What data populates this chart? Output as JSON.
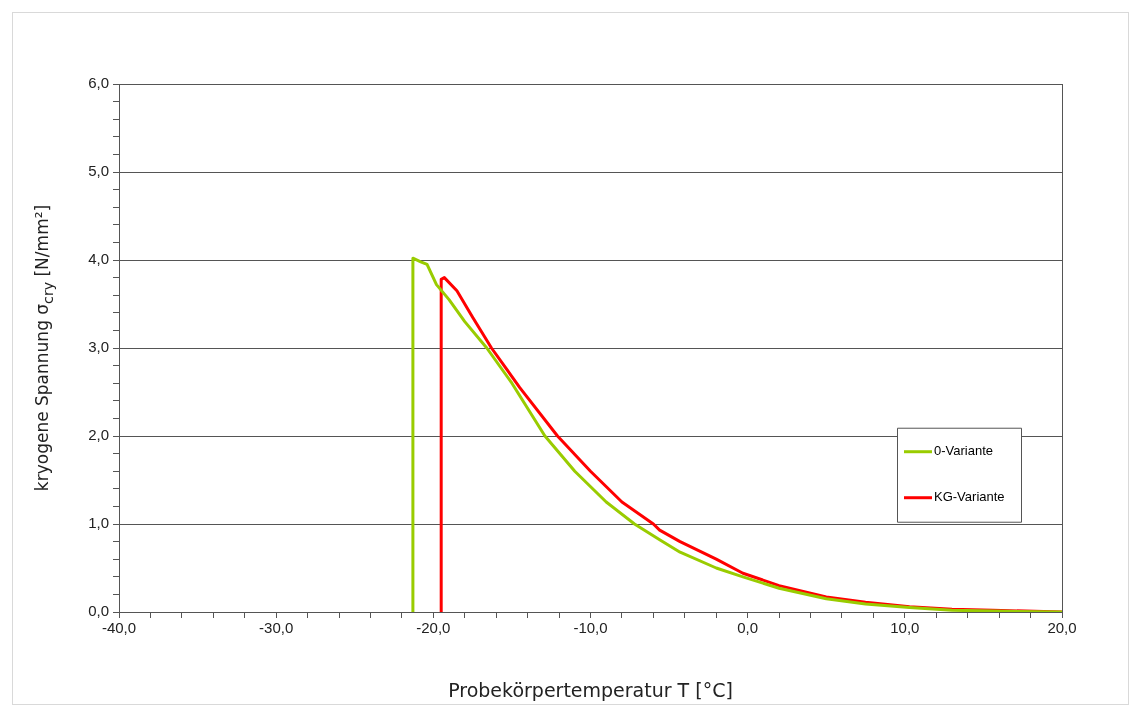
{
  "chart_data": {
    "type": "line",
    "xlabel": "Probekörpertemperatur T [°C]",
    "ylabel": "kryogene Spannung σ$_{cry}$ [N/mm²]",
    "xlim": [
      -40,
      20
    ],
    "xticks": [
      {
        "value": -40,
        "label": "-40,0"
      },
      {
        "value": -38,
        "label": null
      },
      {
        "value": -36,
        "label": null
      },
      {
        "value": -34,
        "label": null
      },
      {
        "value": -32,
        "label": null
      },
      {
        "value": -30,
        "label": "-30,0"
      },
      {
        "value": -28,
        "label": null
      },
      {
        "value": -26,
        "label": null
      },
      {
        "value": -24,
        "label": null
      },
      {
        "value": -22,
        "label": null
      },
      {
        "value": -20,
        "label": "-20,0"
      },
      {
        "value": -18,
        "label": null
      },
      {
        "value": -16,
        "label": null
      },
      {
        "value": -14,
        "label": null
      },
      {
        "value": -12,
        "label": null
      },
      {
        "value": -10,
        "label": "-10,0"
      },
      {
        "value": -8,
        "label": null
      },
      {
        "value": -6,
        "label": null
      },
      {
        "value": -4,
        "label": null
      },
      {
        "value": -2,
        "label": null
      },
      {
        "value": 0,
        "label": "0,0"
      },
      {
        "value": 2,
        "label": null
      },
      {
        "value": 4,
        "label": null
      },
      {
        "value": 6,
        "label": null
      },
      {
        "value": 8,
        "label": null
      },
      {
        "value": 10,
        "label": "10,0"
      },
      {
        "value": 12,
        "label": null
      },
      {
        "value": 14,
        "label": null
      },
      {
        "value": 16,
        "label": null
      },
      {
        "value": 18,
        "label": null
      },
      {
        "value": 20,
        "label": "20,0"
      }
    ],
    "ylim": [
      0,
      6
    ],
    "yticks": [
      {
        "value": 0,
        "label": "0,0"
      },
      {
        "value": 0.2,
        "label": null
      },
      {
        "value": 0.4,
        "label": null
      },
      {
        "value": 0.6,
        "label": null
      },
      {
        "value": 0.8,
        "label": null
      },
      {
        "value": 1,
        "label": "1,0"
      },
      {
        "value": 1.2,
        "label": null
      },
      {
        "value": 1.4,
        "label": null
      },
      {
        "value": 1.6,
        "label": null
      },
      {
        "value": 1.8,
        "label": null
      },
      {
        "value": 2,
        "label": "2,0"
      },
      {
        "value": 2.2,
        "label": null
      },
      {
        "value": 2.4,
        "label": null
      },
      {
        "value": 2.6,
        "label": null
      },
      {
        "value": 2.8,
        "label": null
      },
      {
        "value": 3,
        "label": "3,0"
      },
      {
        "value": 3.2,
        "label": null
      },
      {
        "value": 3.4,
        "label": null
      },
      {
        "value": 3.6,
        "label": null
      },
      {
        "value": 3.8,
        "label": null
      },
      {
        "value": 4,
        "label": "4,0"
      },
      {
        "value": 4.2,
        "label": null
      },
      {
        "value": 4.4,
        "label": null
      },
      {
        "value": 4.6,
        "label": null
      },
      {
        "value": 4.8,
        "label": null
      },
      {
        "value": 5,
        "label": "5,0"
      },
      {
        "value": 5.2,
        "label": null
      },
      {
        "value": 5.4,
        "label": null
      },
      {
        "value": 5.6,
        "label": null
      },
      {
        "value": 5.8,
        "label": null
      },
      {
        "value": 6,
        "label": "6,0"
      }
    ],
    "grid": "y",
    "legend": "right",
    "marker": "none",
    "line_style": "solid",
    "series": [
      {
        "name": "0-Variante",
        "color": "#99cc00",
        "x": [
          -21.3,
          -21.3,
          -20.8,
          -20.4,
          -19.8,
          -19,
          -18,
          -16.6,
          -15,
          -12.9,
          -11,
          -9,
          -7.2,
          -5.6,
          -4.3,
          -2,
          -0.3,
          2,
          5,
          7.5,
          10.3,
          13,
          15.6,
          20
        ],
        "values": [
          0,
          4.02,
          3.98,
          3.95,
          3.72,
          3.55,
          3.3,
          3.0,
          2.6,
          2.0,
          1.6,
          1.25,
          1.0,
          0.82,
          0.68,
          0.5,
          0.4,
          0.27,
          0.15,
          0.09,
          0.05,
          0.02,
          0.01,
          0
        ]
      },
      {
        "name": "KG-Variante",
        "color": "#ff0000",
        "x": [
          -19.5,
          -19.5,
          -19.3,
          -18.5,
          -17.5,
          -16.3,
          -14.5,
          -12.1,
          -10,
          -8,
          -6,
          -5.6,
          -4.3,
          -2,
          -0.3,
          2,
          5,
          7.5,
          10.3,
          13,
          15.6,
          20
        ],
        "values": [
          0,
          3.78,
          3.8,
          3.65,
          3.35,
          3.0,
          2.55,
          2.0,
          1.6,
          1.25,
          1.0,
          0.93,
          0.8,
          0.6,
          0.44,
          0.3,
          0.17,
          0.11,
          0.06,
          0.03,
          0.02,
          0
        ]
      }
    ]
  }
}
